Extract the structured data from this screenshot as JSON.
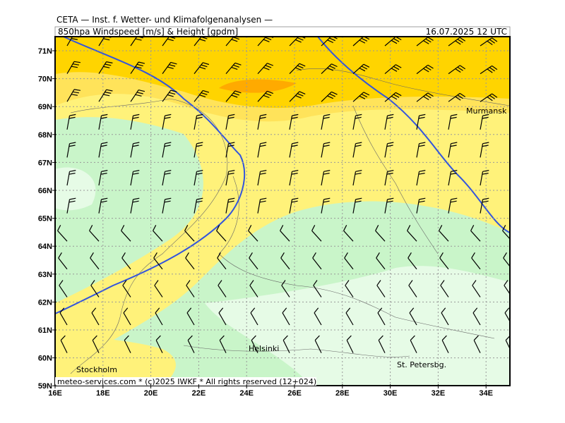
{
  "header": {
    "title": "CETA — Inst. f. Wetter- und Klimafolgenanalysen —",
    "product": "850hpa Windspeed [m/s] & Height [gpdm]",
    "valid_time": "16.07.2025 12 UTC"
  },
  "map": {
    "lat_labels": [
      "71N",
      "70N",
      "69N",
      "68N",
      "67N",
      "66N",
      "65N",
      "64N",
      "63N",
      "62N",
      "61N",
      "60N",
      "59N"
    ],
    "lon_labels": [
      "16E",
      "18E",
      "20E",
      "22E",
      "24E",
      "26E",
      "28E",
      "30E",
      "32E",
      "34E"
    ],
    "places": [
      "Murmansk",
      "Helsinki",
      "Stockholm",
      "St. Petersbg."
    ]
  },
  "footer": "meteo-services.com * (c)2025 IWKF * All rights reserved (12+024)"
}
